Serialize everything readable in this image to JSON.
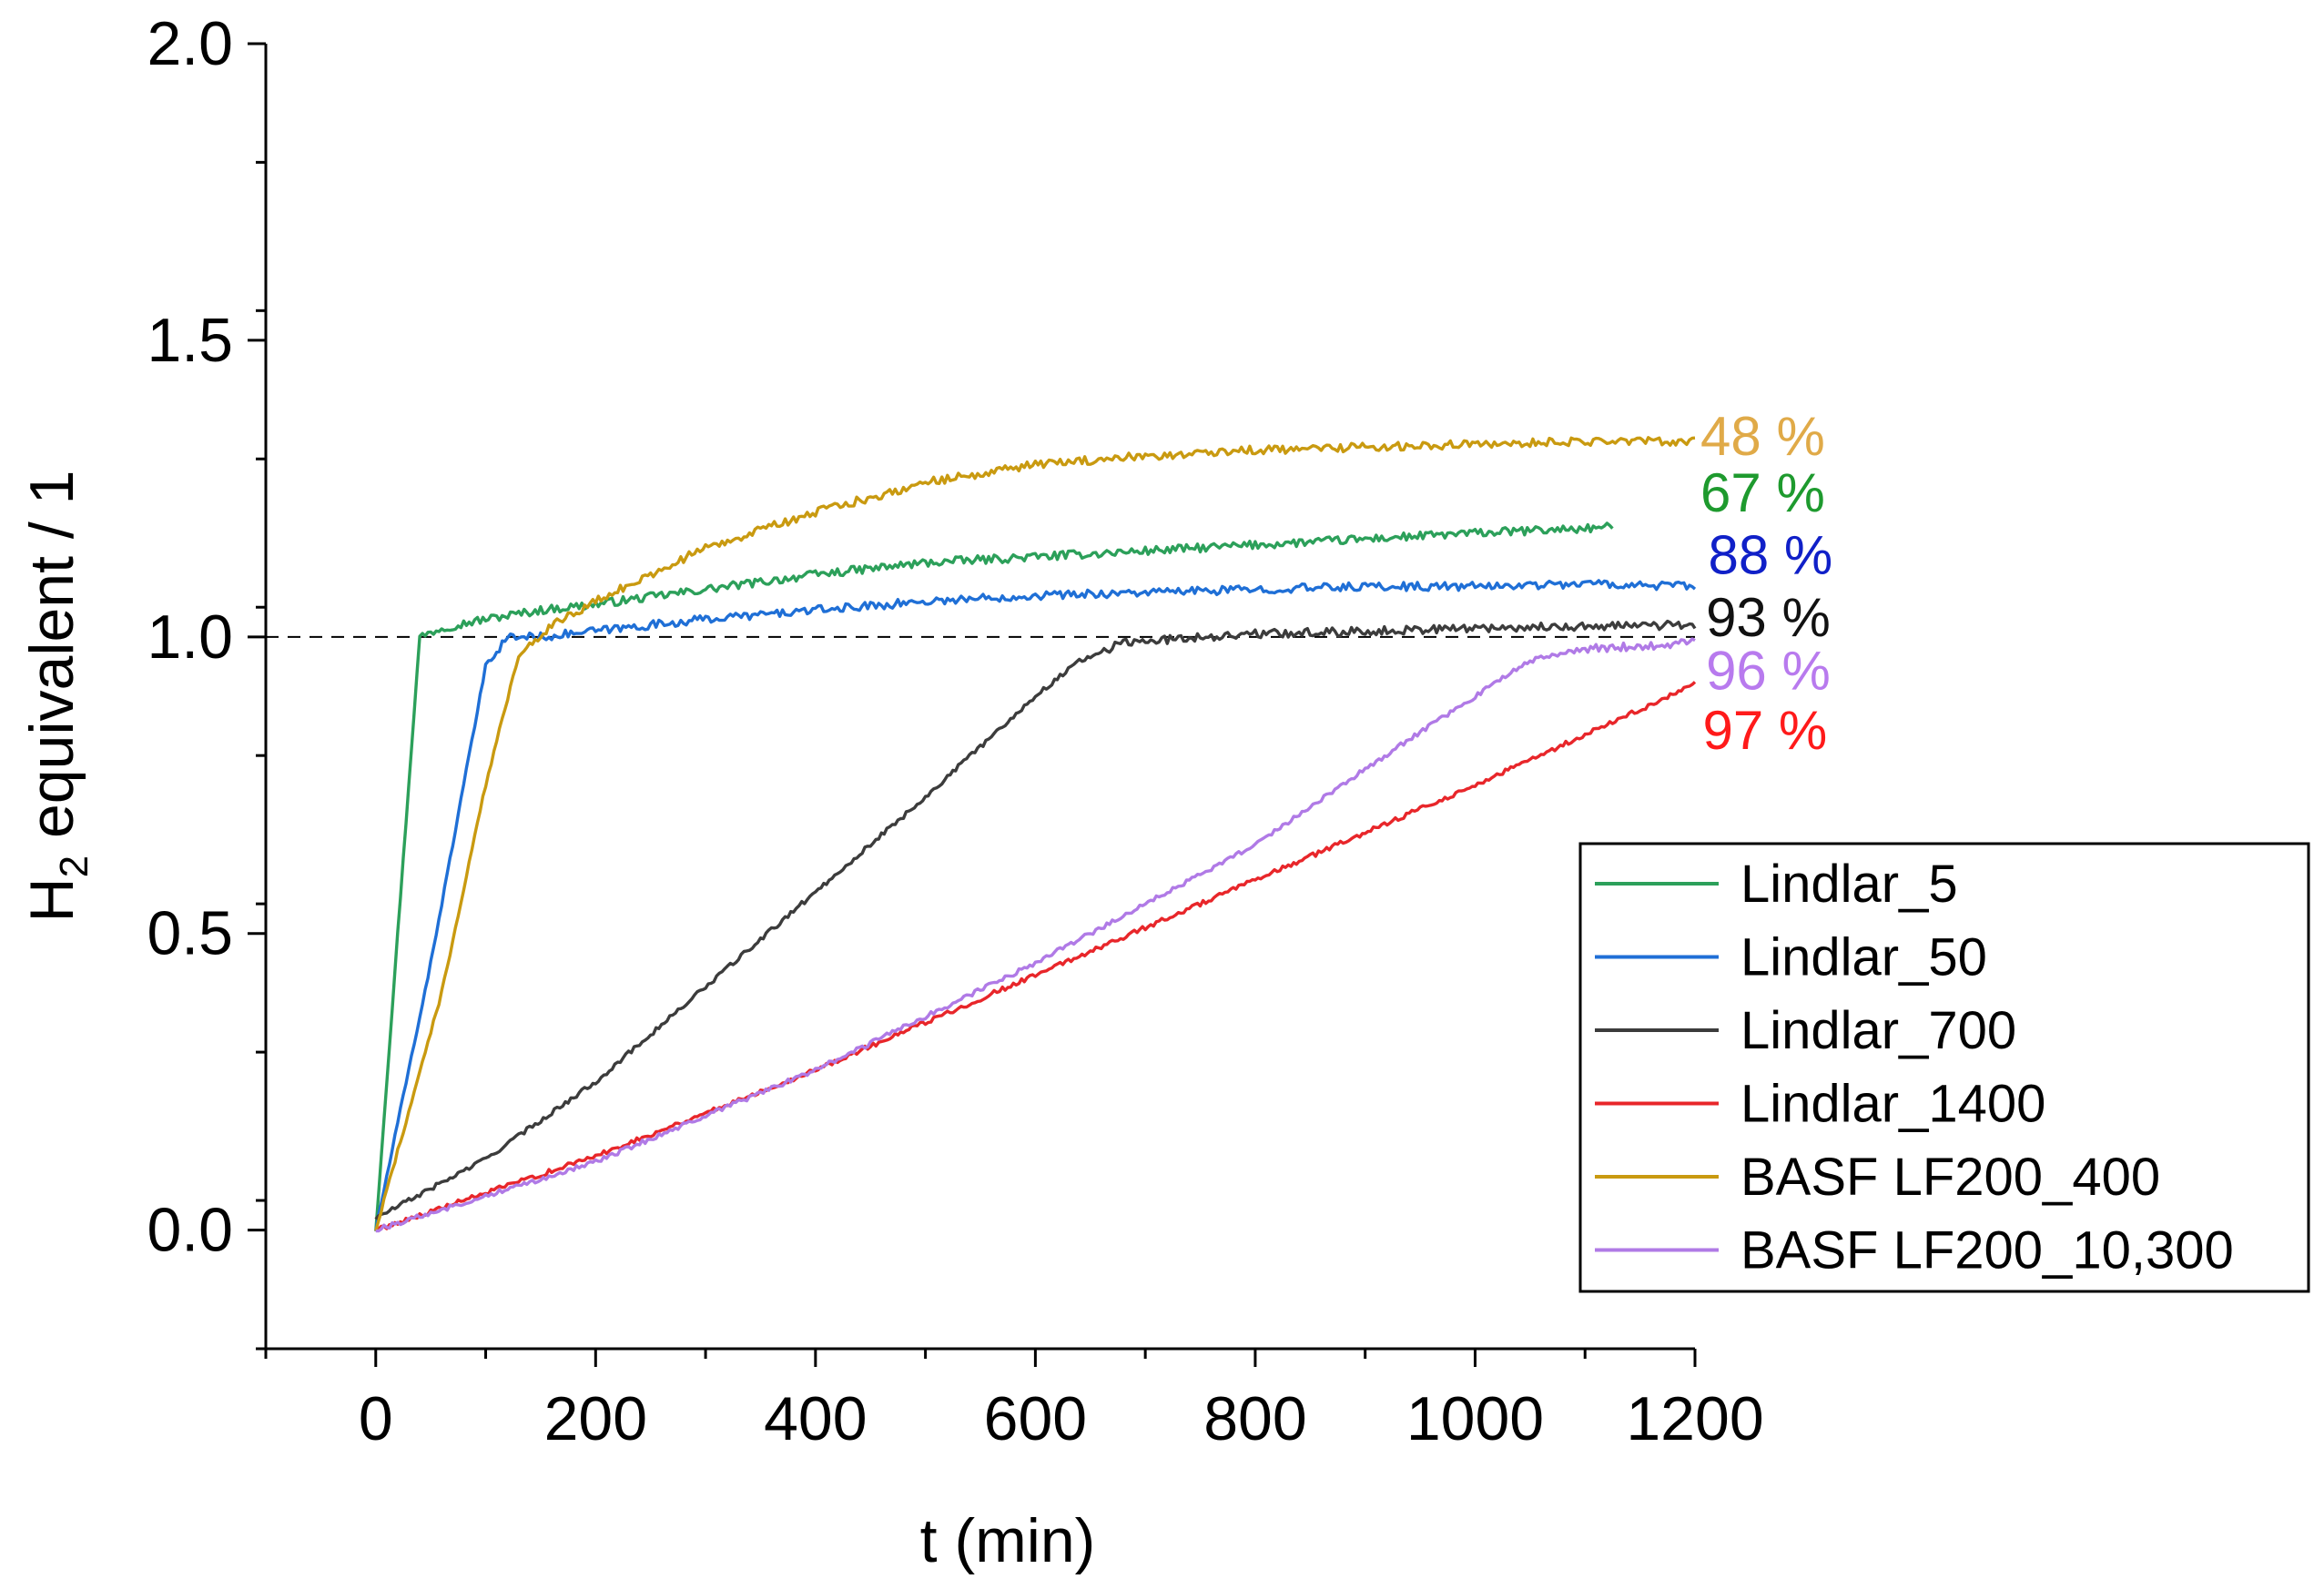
{
  "chart_data": {
    "type": "line",
    "xlabel": "t (min)",
    "ylabel": {
      "main": "H",
      "sub": "2",
      "rest": " equivalent / 1"
    },
    "xlim": [
      -100,
      1200
    ],
    "ylim": [
      -0.2,
      2.0
    ],
    "xticks": [
      0,
      200,
      400,
      600,
      800,
      1000,
      1200
    ],
    "xtick_labels": [
      "0",
      "200",
      "400",
      "600",
      "800",
      "1000",
      "1200"
    ],
    "yticks": [
      0.0,
      0.5,
      1.0,
      1.5,
      2.0
    ],
    "ytick_labels": [
      "0.0",
      "0.5",
      "1.0",
      "1.5",
      "2.0"
    ],
    "reference_line": {
      "y": 1.0,
      "style": "dashed",
      "color": "#000000"
    },
    "legend_position": "lower-right",
    "series": [
      {
        "name": "Lindlar_5",
        "color": "#2ca05a",
        "x": [
          0,
          40,
          60,
          100,
          150,
          200,
          300,
          400,
          500,
          600,
          700,
          800,
          900,
          1000,
          1125
        ],
        "y": [
          0,
          1.0,
          1.015,
          1.03,
          1.045,
          1.055,
          1.08,
          1.105,
          1.125,
          1.135,
          1.145,
          1.155,
          1.165,
          1.175,
          1.185
        ]
      },
      {
        "name": "Lindlar_50",
        "color": "#1f6fd6",
        "x": [
          0,
          50,
          100,
          120,
          150,
          200,
          300,
          400,
          500,
          600,
          700,
          800,
          900,
          1000,
          1100,
          1200
        ],
        "y": [
          0,
          0.45,
          0.95,
          1.0,
          1.0,
          1.01,
          1.03,
          1.045,
          1.06,
          1.07,
          1.075,
          1.08,
          1.085,
          1.085,
          1.09,
          1.085
        ]
      },
      {
        "name": "Lindlar_700",
        "color": "#3c3c3c",
        "x": [
          0,
          100,
          200,
          300,
          400,
          500,
          600,
          640,
          680,
          750,
          800,
          900,
          1000,
          1100,
          1200
        ],
        "y": [
          0.02,
          0.12,
          0.25,
          0.41,
          0.57,
          0.73,
          0.9,
          0.96,
          0.99,
          1.0,
          1.005,
          1.01,
          1.015,
          1.018,
          1.02
        ]
      },
      {
        "name": "Lindlar_1400",
        "color": "#e8262a",
        "x": [
          0,
          200,
          400,
          600,
          800,
          1000,
          1200
        ],
        "y": [
          0,
          0.125,
          0.27,
          0.43,
          0.59,
          0.75,
          0.92
        ]
      },
      {
        "name": "BASF LF200_400",
        "color": "#c99a10",
        "x": [
          0,
          60,
          100,
          130,
          160,
          200,
          300,
          400,
          500,
          600,
          700,
          800,
          900,
          1000,
          1100,
          1200
        ],
        "y": [
          0,
          0.4,
          0.75,
          0.97,
          1.02,
          1.06,
          1.15,
          1.21,
          1.26,
          1.29,
          1.305,
          1.315,
          1.32,
          1.325,
          1.33,
          1.33
        ]
      },
      {
        "name": "BASF LF200_10,300",
        "color": "#b07ae6",
        "x": [
          0,
          200,
          400,
          600,
          800,
          950,
          1050,
          1100,
          1150,
          1200
        ],
        "y": [
          0,
          0.115,
          0.27,
          0.45,
          0.65,
          0.84,
          0.96,
          0.98,
          0.985,
          0.99
        ]
      }
    ],
    "annotations": [
      {
        "text": "48 %",
        "color": "#e0aa48",
        "x": 1205,
        "y": 1.34
      },
      {
        "text": "67 %",
        "color": "#1e9a2e",
        "x": 1205,
        "y": 1.245
      },
      {
        "text": "88 %",
        "color": "#1020c8",
        "x": 1212,
        "y": 1.14
      },
      {
        "text": "93 %",
        "color": "#111111",
        "x": 1210,
        "y": 1.035
      },
      {
        "text": "96 %",
        "color": "#b87aee",
        "x": 1210,
        "y": 0.945
      },
      {
        "text": "97 %",
        "color": "#ff1a1a",
        "x": 1207,
        "y": 0.845
      }
    ]
  }
}
